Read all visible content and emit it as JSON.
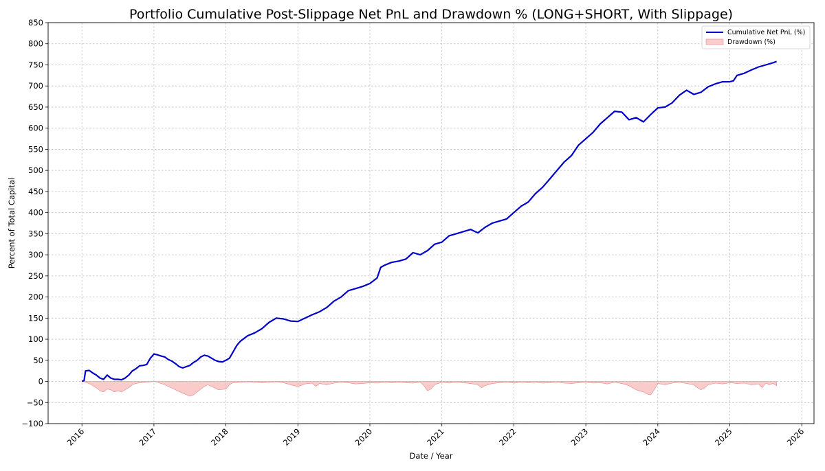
{
  "chart_data": {
    "type": "line",
    "title": "Portfolio Cumulative Post-Slippage Net PnL and Drawdown % (LONG+SHORT, With Slippage)",
    "xlabel": "Date / Year",
    "ylabel": "Percent of Total Capital",
    "xlim": [
      2015.53,
      2026.17
    ],
    "ylim": [
      -100,
      850
    ],
    "x_ticks": [
      2016,
      2017,
      2018,
      2019,
      2020,
      2021,
      2022,
      2023,
      2024,
      2025,
      2026
    ],
    "x_tick_labels": [
      "2016",
      "2017",
      "2018",
      "2019",
      "2020",
      "2021",
      "2022",
      "2023",
      "2024",
      "2025",
      "2026"
    ],
    "y_ticks": [
      -100,
      -50,
      0,
      50,
      100,
      150,
      200,
      250,
      300,
      350,
      400,
      450,
      500,
      550,
      600,
      650,
      700,
      750,
      800,
      850
    ],
    "y_tick_labels": [
      "−100",
      "−50",
      "0",
      "50",
      "100",
      "150",
      "200",
      "250",
      "300",
      "350",
      "400",
      "450",
      "500",
      "550",
      "600",
      "650",
      "700",
      "750",
      "800",
      "850"
    ],
    "grid": true,
    "legend_position": "top-right",
    "series": [
      {
        "name": "Cumulative Net PnL (%)",
        "kind": "line",
        "color": "#0000cc",
        "x": [
          2016.0,
          2016.03,
          2016.05,
          2016.1,
          2016.15,
          2016.2,
          2016.25,
          2016.3,
          2016.35,
          2016.4,
          2016.45,
          2016.5,
          2016.55,
          2016.6,
          2016.65,
          2016.7,
          2016.75,
          2016.8,
          2016.85,
          2016.9,
          2016.95,
          2017.0,
          2017.05,
          2017.1,
          2017.15,
          2017.2,
          2017.25,
          2017.3,
          2017.35,
          2017.4,
          2017.45,
          2017.5,
          2017.55,
          2017.6,
          2017.65,
          2017.7,
          2017.75,
          2017.8,
          2017.85,
          2017.9,
          2017.95,
          2018.0,
          2018.05,
          2018.1,
          2018.15,
          2018.2,
          2018.3,
          2018.4,
          2018.5,
          2018.6,
          2018.7,
          2018.8,
          2018.9,
          2019.0,
          2019.1,
          2019.2,
          2019.3,
          2019.4,
          2019.5,
          2019.6,
          2019.7,
          2019.8,
          2019.9,
          2020.0,
          2020.1,
          2020.15,
          2020.2,
          2020.3,
          2020.4,
          2020.5,
          2020.6,
          2020.7,
          2020.8,
          2020.9,
          2021.0,
          2021.1,
          2021.2,
          2021.3,
          2021.4,
          2021.5,
          2021.6,
          2021.7,
          2021.8,
          2021.9,
          2022.0,
          2022.1,
          2022.2,
          2022.3,
          2022.4,
          2022.5,
          2022.6,
          2022.7,
          2022.8,
          2022.9,
          2023.0,
          2023.1,
          2023.2,
          2023.3,
          2023.4,
          2023.5,
          2023.6,
          2023.7,
          2023.8,
          2023.9,
          2024.0,
          2024.1,
          2024.2,
          2024.3,
          2024.4,
          2024.5,
          2024.6,
          2024.7,
          2024.8,
          2024.9,
          2025.0,
          2025.05,
          2025.1,
          2025.2,
          2025.3,
          2025.4,
          2025.5,
          2025.6,
          2025.65
        ],
        "values": [
          0,
          2,
          25,
          26,
          20,
          15,
          8,
          5,
          15,
          8,
          5,
          5,
          4,
          8,
          15,
          25,
          30,
          37,
          38,
          40,
          55,
          65,
          63,
          60,
          58,
          52,
          48,
          42,
          35,
          32,
          35,
          38,
          45,
          50,
          58,
          62,
          60,
          55,
          50,
          47,
          46,
          50,
          55,
          70,
          85,
          95,
          108,
          115,
          125,
          140,
          150,
          148,
          143,
          142,
          150,
          158,
          165,
          175,
          190,
          200,
          215,
          220,
          225,
          232,
          245,
          270,
          275,
          282,
          285,
          290,
          305,
          300,
          310,
          325,
          330,
          345,
          350,
          355,
          360,
          352,
          365,
          375,
          380,
          385,
          400,
          415,
          425,
          445,
          460,
          480,
          500,
          520,
          535,
          560,
          575,
          590,
          610,
          625,
          640,
          638,
          620,
          625,
          615,
          632,
          648,
          650,
          660,
          678,
          690,
          680,
          685,
          698,
          705,
          710,
          710,
          712,
          725,
          730,
          738,
          745,
          750,
          755,
          758
        ]
      },
      {
        "name": "Drawdown (%)",
        "kind": "area",
        "color": "#f5a0a0",
        "x": [
          2016.0,
          2016.05,
          2016.1,
          2016.15,
          2016.2,
          2016.25,
          2016.3,
          2016.35,
          2016.4,
          2016.45,
          2016.5,
          2016.55,
          2016.6,
          2016.65,
          2016.7,
          2016.75,
          2016.8,
          2016.9,
          2017.0,
          2017.05,
          2017.1,
          2017.15,
          2017.2,
          2017.3,
          2017.4,
          2017.5,
          2017.55,
          2017.6,
          2017.7,
          2017.75,
          2017.8,
          2017.9,
          2018.0,
          2018.05,
          2018.1,
          2018.2,
          2018.3,
          2018.4,
          2018.5,
          2018.6,
          2018.7,
          2018.8,
          2018.9,
          2019.0,
          2019.1,
          2019.2,
          2019.25,
          2019.3,
          2019.4,
          2019.5,
          2019.6,
          2019.7,
          2019.8,
          2019.9,
          2020.0,
          2020.1,
          2020.2,
          2020.3,
          2020.4,
          2020.5,
          2020.6,
          2020.7,
          2020.75,
          2020.8,
          2020.85,
          2020.9,
          2021.0,
          2021.1,
          2021.2,
          2021.3,
          2021.4,
          2021.5,
          2021.55,
          2021.6,
          2021.7,
          2021.8,
          2021.9,
          2022.0,
          2022.1,
          2022.2,
          2022.3,
          2022.4,
          2022.5,
          2022.6,
          2022.7,
          2022.8,
          2022.9,
          2023.0,
          2023.1,
          2023.2,
          2023.3,
          2023.4,
          2023.5,
          2023.6,
          2023.7,
          2023.8,
          2023.85,
          2023.9,
          2023.95,
          2024.0,
          2024.1,
          2024.2,
          2024.3,
          2024.4,
          2024.5,
          2024.55,
          2024.6,
          2024.65,
          2024.7,
          2024.8,
          2024.9,
          2025.0,
          2025.1,
          2025.2,
          2025.3,
          2025.4,
          2025.45,
          2025.5,
          2025.55,
          2025.6,
          2025.65
        ],
        "values": [
          0,
          -2,
          -5,
          -10,
          -15,
          -22,
          -25,
          -18,
          -20,
          -25,
          -22,
          -25,
          -20,
          -15,
          -8,
          -5,
          -3,
          -2,
          0,
          -2,
          -5,
          -8,
          -12,
          -20,
          -28,
          -35,
          -32,
          -25,
          -12,
          -8,
          -12,
          -20,
          -18,
          -8,
          -3,
          -2,
          -1,
          -2,
          -3,
          -2,
          -1,
          -3,
          -8,
          -12,
          -6,
          -4,
          -12,
          -5,
          -8,
          -4,
          -2,
          -3,
          -6,
          -5,
          -3,
          -4,
          -2,
          -3,
          -2,
          -3,
          -4,
          -2,
          -10,
          -22,
          -18,
          -8,
          -2,
          -4,
          -2,
          -3,
          -5,
          -8,
          -15,
          -10,
          -5,
          -3,
          -2,
          -4,
          -2,
          -3,
          -2,
          -4,
          -3,
          -2,
          -4,
          -5,
          -3,
          -2,
          -4,
          -3,
          -6,
          -2,
          -5,
          -10,
          -20,
          -25,
          -30,
          -32,
          -20,
          -5,
          -8,
          -4,
          -2,
          -5,
          -8,
          -15,
          -20,
          -15,
          -8,
          -4,
          -6,
          -3,
          -5,
          -4,
          -8,
          -6,
          -15,
          -4,
          -8,
          -5,
          -10
        ]
      }
    ]
  }
}
